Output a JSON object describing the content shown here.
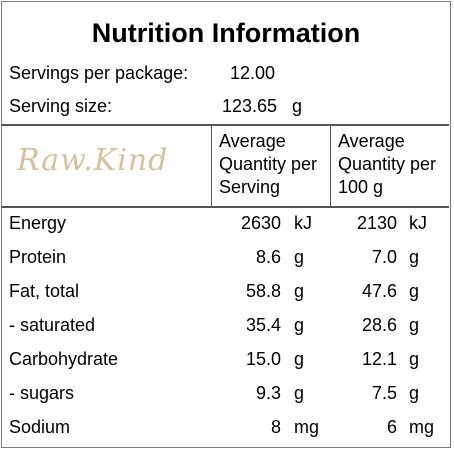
{
  "title": "Nutrition Information",
  "servings": {
    "label": "Servings per package:",
    "value": "12.00"
  },
  "serving_size": {
    "label": "Serving size:",
    "value": "123.65",
    "unit": "g"
  },
  "logo": "Raw.Kind",
  "columns": {
    "per_serving": [
      "Average",
      "Quantity per",
      "Serving"
    ],
    "per_100g": [
      "Average",
      "Quantity per",
      "100 g"
    ]
  },
  "rows": [
    {
      "name": "Energy",
      "serving": "2630",
      "serving_unit": "kJ",
      "per100": "2130",
      "per100_unit": "kJ"
    },
    {
      "name": "Protein",
      "serving": "8.6",
      "serving_unit": "g",
      "per100": "7.0",
      "per100_unit": "g"
    },
    {
      "name": "Fat, total",
      "serving": "58.8",
      "serving_unit": "g",
      "per100": "47.6",
      "per100_unit": "g"
    },
    {
      "name": "- saturated",
      "serving": "35.4",
      "serving_unit": "g",
      "per100": "28.6",
      "per100_unit": "g"
    },
    {
      "name": "Carbohydrate",
      "serving": "15.0",
      "serving_unit": "g",
      "per100": "12.1",
      "per100_unit": "g"
    },
    {
      "name": "- sugars",
      "serving": "9.3",
      "serving_unit": "g",
      "per100": "7.5",
      "per100_unit": "g"
    },
    {
      "name": "Sodium",
      "serving": "8",
      "serving_unit": "mg",
      "per100": "6",
      "per100_unit": "mg"
    }
  ],
  "colors": {
    "logo": "#d6c19c",
    "border": "#555555"
  }
}
